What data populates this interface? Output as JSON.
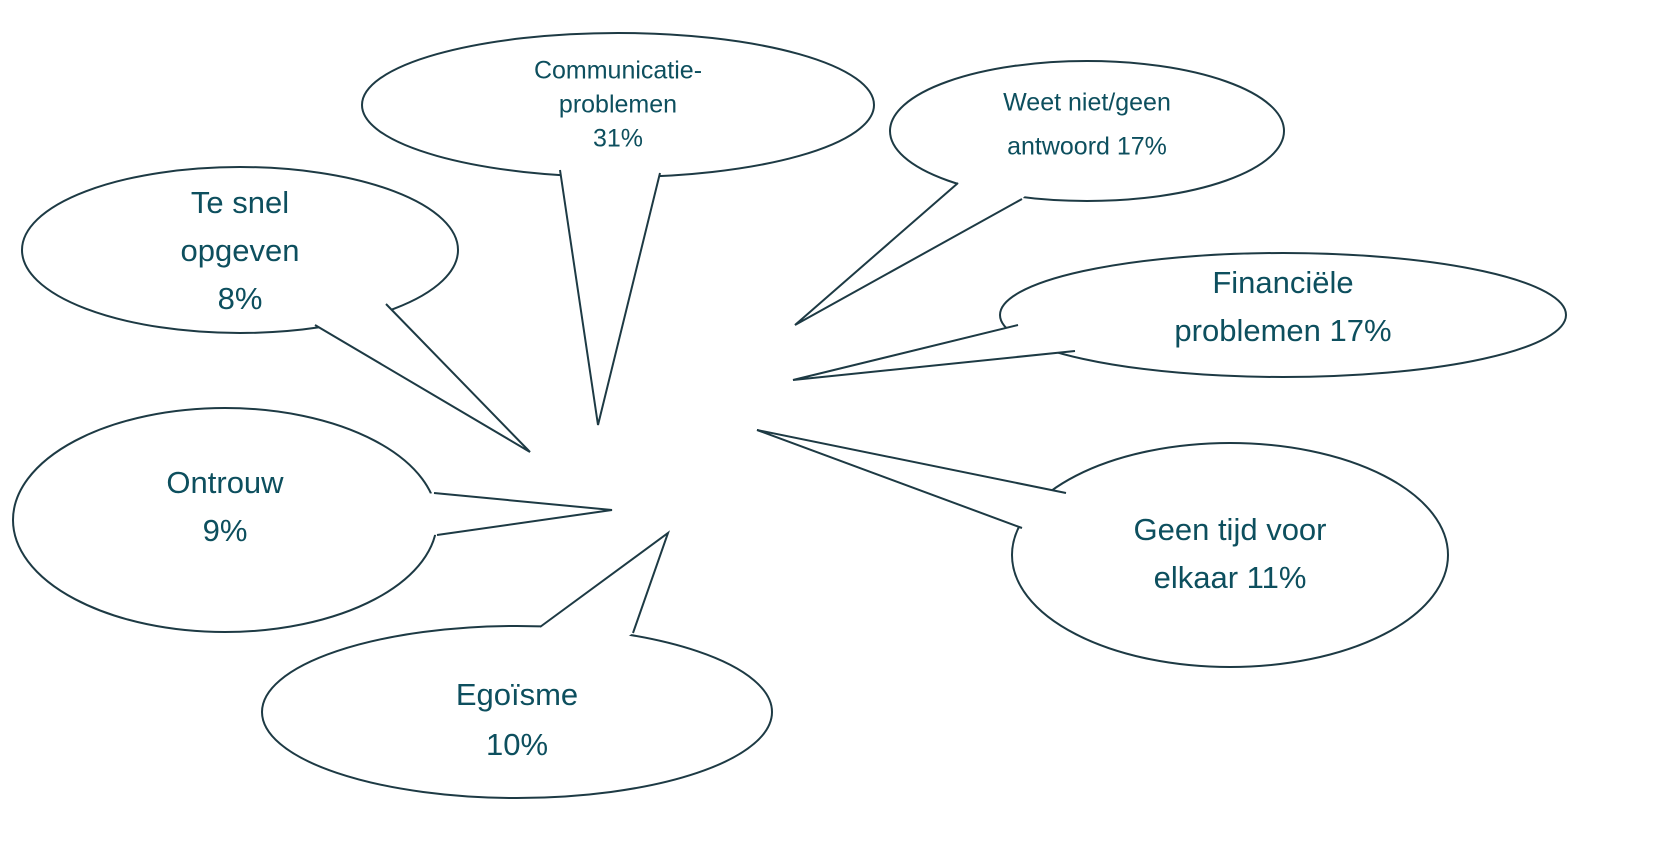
{
  "bubbles": [
    {
      "lines": [
        "Communicatie-",
        "problemen",
        "31%"
      ]
    },
    {
      "lines": [
        "Weet niet/geen",
        "antwoord 17%"
      ]
    },
    {
      "lines": [
        "Financiële",
        "problemen 17%"
      ]
    },
    {
      "lines": [
        "Te snel",
        "opgeven",
        "8%"
      ]
    },
    {
      "lines": [
        "Ontrouw",
        "9%"
      ]
    },
    {
      "lines": [
        "Egoïsme",
        "10%"
      ]
    },
    {
      "lines": [
        "Geen tijd voor",
        "elkaar 11%"
      ]
    }
  ]
}
